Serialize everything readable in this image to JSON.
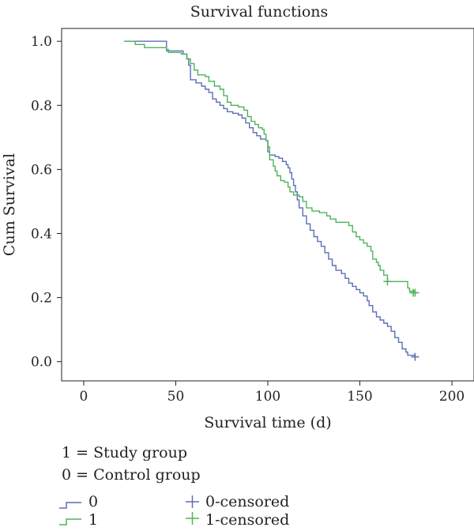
{
  "chart_data": {
    "type": "line",
    "title": "Survival functions",
    "xlabel": "Survival time (d)",
    "ylabel": "Cum Survival",
    "xlim": [
      -12,
      212
    ],
    "ylim": [
      -0.06,
      1.04
    ],
    "xticks": [
      "0",
      "50",
      "100",
      "150",
      "200"
    ],
    "yticks": [
      "0.0",
      "0.2",
      "0.4",
      "0.6",
      "0.8",
      "1.0"
    ],
    "grid": false,
    "legend_position": "bottom-left",
    "series": [
      {
        "name": "0",
        "color": "#5b6fb5",
        "censored_label": "0-censored",
        "censored_points": [
          [
            180,
            0.015
          ]
        ],
        "points": [
          [
            22,
            1.0
          ],
          [
            45,
            1.0
          ],
          [
            45,
            0.97
          ],
          [
            54,
            0.96
          ],
          [
            56,
            0.945
          ],
          [
            57,
            0.925
          ],
          [
            58,
            0.88
          ],
          [
            61,
            0.87
          ],
          [
            64,
            0.86
          ],
          [
            66,
            0.85
          ],
          [
            68,
            0.84
          ],
          [
            70,
            0.82
          ],
          [
            72,
            0.81
          ],
          [
            74,
            0.8
          ],
          [
            76,
            0.79
          ],
          [
            78,
            0.78
          ],
          [
            81,
            0.775
          ],
          [
            84,
            0.77
          ],
          [
            86,
            0.76
          ],
          [
            88,
            0.745
          ],
          [
            90,
            0.73
          ],
          [
            92,
            0.715
          ],
          [
            94,
            0.705
          ],
          [
            96,
            0.695
          ],
          [
            99,
            0.69
          ],
          [
            100,
            0.655
          ],
          [
            101,
            0.645
          ],
          [
            104,
            0.64
          ],
          [
            106,
            0.635
          ],
          [
            108,
            0.625
          ],
          [
            110,
            0.615
          ],
          [
            111,
            0.605
          ],
          [
            112,
            0.59
          ],
          [
            113,
            0.57
          ],
          [
            114,
            0.55
          ],
          [
            115,
            0.53
          ],
          [
            116,
            0.505
          ],
          [
            117,
            0.48
          ],
          [
            119,
            0.455
          ],
          [
            121,
            0.43
          ],
          [
            123,
            0.41
          ],
          [
            125,
            0.39
          ],
          [
            127,
            0.375
          ],
          [
            129,
            0.36
          ],
          [
            131,
            0.34
          ],
          [
            133,
            0.32
          ],
          [
            135,
            0.3
          ],
          [
            137,
            0.285
          ],
          [
            140,
            0.275
          ],
          [
            142,
            0.26
          ],
          [
            144,
            0.245
          ],
          [
            146,
            0.235
          ],
          [
            148,
            0.225
          ],
          [
            150,
            0.215
          ],
          [
            152,
            0.205
          ],
          [
            154,
            0.19
          ],
          [
            155,
            0.175
          ],
          [
            157,
            0.155
          ],
          [
            159,
            0.14
          ],
          [
            161,
            0.13
          ],
          [
            163,
            0.12
          ],
          [
            165,
            0.11
          ],
          [
            167,
            0.095
          ],
          [
            169,
            0.075
          ],
          [
            171,
            0.06
          ],
          [
            173,
            0.04
          ],
          [
            175,
            0.03
          ],
          [
            176,
            0.02
          ],
          [
            180,
            0.015
          ]
        ]
      },
      {
        "name": "1",
        "color": "#4fb35a",
        "censored_label": "1-censored",
        "censored_points": [
          [
            165,
            0.25
          ],
          [
            179,
            0.215
          ],
          [
            180,
            0.215
          ]
        ],
        "points": [
          [
            22,
            1.0
          ],
          [
            28,
            1.0
          ],
          [
            28,
            0.99
          ],
          [
            33,
            0.99
          ],
          [
            33,
            0.98
          ],
          [
            40,
            0.98
          ],
          [
            45,
            0.975
          ],
          [
            46,
            0.965
          ],
          [
            53,
            0.96
          ],
          [
            56,
            0.945
          ],
          [
            58,
            0.93
          ],
          [
            60,
            0.91
          ],
          [
            62,
            0.895
          ],
          [
            66,
            0.89
          ],
          [
            68,
            0.875
          ],
          [
            71,
            0.86
          ],
          [
            74,
            0.85
          ],
          [
            76,
            0.83
          ],
          [
            78,
            0.81
          ],
          [
            80,
            0.8
          ],
          [
            84,
            0.795
          ],
          [
            87,
            0.785
          ],
          [
            89,
            0.765
          ],
          [
            91,
            0.75
          ],
          [
            93,
            0.74
          ],
          [
            95,
            0.73
          ],
          [
            97,
            0.725
          ],
          [
            98,
            0.71
          ],
          [
            99,
            0.69
          ],
          [
            100,
            0.67
          ],
          [
            101,
            0.63
          ],
          [
            103,
            0.61
          ],
          [
            104,
            0.595
          ],
          [
            105,
            0.58
          ],
          [
            107,
            0.565
          ],
          [
            109,
            0.56
          ],
          [
            111,
            0.545
          ],
          [
            112,
            0.53
          ],
          [
            114,
            0.52
          ],
          [
            117,
            0.515
          ],
          [
            119,
            0.5
          ],
          [
            121,
            0.48
          ],
          [
            124,
            0.47
          ],
          [
            128,
            0.465
          ],
          [
            132,
            0.455
          ],
          [
            134,
            0.445
          ],
          [
            137,
            0.435
          ],
          [
            144,
            0.425
          ],
          [
            146,
            0.405
          ],
          [
            148,
            0.39
          ],
          [
            150,
            0.38
          ],
          [
            152,
            0.37
          ],
          [
            154,
            0.36
          ],
          [
            156,
            0.345
          ],
          [
            157,
            0.32
          ],
          [
            159,
            0.31
          ],
          [
            160,
            0.3
          ],
          [
            161,
            0.285
          ],
          [
            163,
            0.27
          ],
          [
            165,
            0.25
          ],
          [
            174,
            0.25
          ],
          [
            176,
            0.23
          ],
          [
            177,
            0.22
          ],
          [
            180,
            0.215
          ]
        ]
      }
    ],
    "notes": [
      "1 = Study group",
      "0 = Control group"
    ]
  }
}
